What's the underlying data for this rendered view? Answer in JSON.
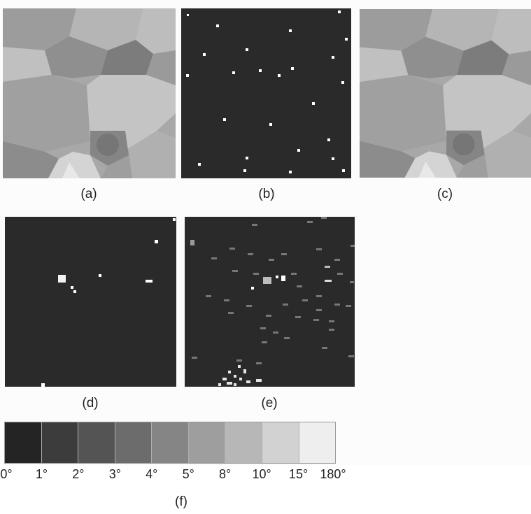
{
  "panels": [
    {
      "id": "a",
      "label": "(a)"
    },
    {
      "id": "b",
      "label": "(b)"
    },
    {
      "id": "c",
      "label": "(c)"
    },
    {
      "id": "d",
      "label": "(d)"
    },
    {
      "id": "e",
      "label": "(e)"
    }
  ],
  "colorbar": {
    "label": "(f)",
    "ticks": [
      "0°",
      "1°",
      "2°",
      "3°",
      "4°",
      "5°",
      "8°",
      "10°",
      "15°",
      "180°"
    ],
    "swatch_colors": [
      "#242424",
      "#3c3c3c",
      "#545454",
      "#6c6c6c",
      "#858585",
      "#9e9e9e",
      "#b7b7b7",
      "#d2d2d2",
      "#eeeeee"
    ]
  },
  "colors": {
    "map_background": "#2a2a2a",
    "spot": "#ffffff"
  }
}
